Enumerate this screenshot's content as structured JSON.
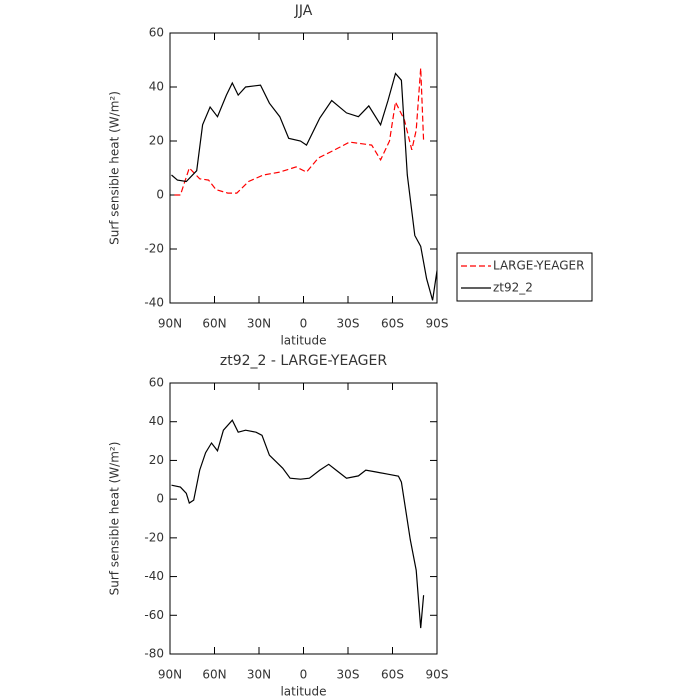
{
  "chart_data": [
    {
      "type": "line",
      "title": "JJA",
      "x_label": "latitude",
      "y_label": "Surf sensible heat (W/m²)",
      "xlim": [
        90,
        -90
      ],
      "ylim": [
        -40,
        60
      ],
      "xticks": [
        {
          "value": 90,
          "label": "90N"
        },
        {
          "value": 60,
          "label": "60N"
        },
        {
          "value": 30,
          "label": "30N"
        },
        0,
        {
          "value": -30,
          "label": "30S"
        },
        {
          "value": -60,
          "label": "60S"
        },
        {
          "value": -90,
          "label": "90S"
        }
      ],
      "yticks": [
        -40,
        -20,
        0,
        20,
        40,
        60
      ],
      "legend": "right",
      "series": [
        {
          "name": "LARGE-YEAGER",
          "color": "#ff0000",
          "line_style": "dashed",
          "x": [
            87,
            83,
            77,
            70,
            64,
            59,
            51,
            45,
            37,
            27,
            16,
            5,
            -2,
            -10,
            -21,
            -31,
            -39,
            -46,
            -52,
            -58,
            -62,
            -68,
            -73,
            -76,
            -79,
            -81
          ],
          "values": [
            0,
            0,
            10,
            6,
            5.5,
            2,
            0.7,
            0.7,
            5,
            7.4,
            8.5,
            10.4,
            8.5,
            13.7,
            16.7,
            19.6,
            19,
            18.5,
            13,
            20,
            34.4,
            27.8,
            16.7,
            24,
            47,
            20
          ]
        },
        {
          "name": "zt92_2",
          "color": "#000000",
          "line_style": "solid",
          "x": [
            89,
            85,
            79,
            72,
            68,
            63,
            58,
            52,
            48,
            44,
            39,
            29,
            23,
            16,
            10,
            2,
            -2,
            -11,
            -19,
            -29,
            -37,
            -44,
            -52,
            -57,
            -62,
            -66,
            -70,
            -75,
            -79,
            -83,
            -87,
            -90
          ],
          "values": [
            7.4,
            5.5,
            5,
            9,
            26,
            32.6,
            29,
            37,
            41.5,
            37,
            40,
            40.7,
            34,
            29,
            21,
            20,
            18.5,
            28.5,
            35,
            30.4,
            29,
            33,
            26,
            35,
            45,
            42.5,
            7.4,
            -15,
            -19,
            -31,
            -39,
            -28
          ]
        }
      ]
    },
    {
      "type": "line",
      "title": "zt92_2 - LARGE-YEAGER",
      "x_label": "latitude",
      "y_label": "Surf sensible heat (W/m²)",
      "xlim": [
        90,
        -90
      ],
      "ylim": [
        -80,
        60
      ],
      "xticks": [
        {
          "value": 90,
          "label": "90N"
        },
        {
          "value": 60,
          "label": "60N"
        },
        {
          "value": 30,
          "label": "30N"
        },
        0,
        {
          "value": -30,
          "label": "30S"
        },
        {
          "value": -60,
          "label": "60S"
        },
        {
          "value": -90,
          "label": "90S"
        }
      ],
      "yticks": [
        -80,
        -60,
        -40,
        -20,
        0,
        20,
        40,
        60
      ],
      "series": [
        {
          "color": "#000000",
          "line_style": "solid",
          "x": [
            89,
            83,
            79,
            77,
            74,
            70,
            66,
            62,
            58,
            54,
            48,
            44,
            39,
            32,
            28,
            23,
            14,
            9,
            2,
            -4,
            -11,
            -17,
            -22,
            -29,
            -37,
            -42,
            -49,
            -57,
            -64,
            -66,
            -72,
            -76,
            -79,
            -81
          ],
          "values": [
            7.2,
            6.2,
            3,
            -2,
            -0.5,
            15,
            24,
            29,
            25,
            35.6,
            40.8,
            34.6,
            35.6,
            34.6,
            33,
            22.7,
            16,
            10.8,
            10.3,
            10.8,
            15,
            18,
            15,
            10.8,
            12,
            15,
            14,
            12.9,
            11.9,
            8.8,
            -21,
            -36.7,
            -66.6,
            -49.6
          ]
        }
      ]
    }
  ]
}
